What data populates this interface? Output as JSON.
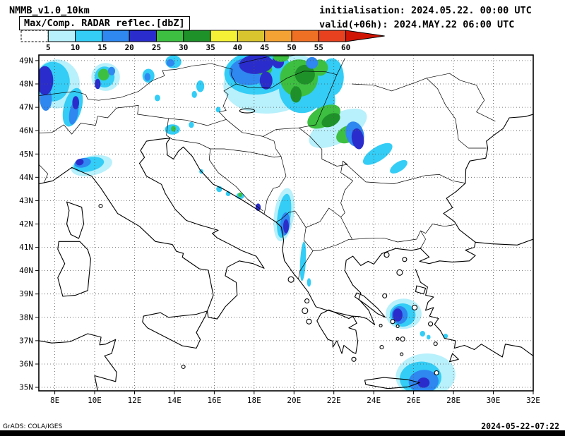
{
  "header": {
    "model": "NMMB_v1.0_10km",
    "init": "initialisation: 2024.05.22. 00:00 UTC",
    "valid": "valid(+06h): 2024.MAY.22 06:00 UTC"
  },
  "legend": {
    "title": "Max/Comp. RADAR reflec.[dbZ]",
    "tick_values": [
      "5",
      "10",
      "15",
      "20",
      "25",
      "30",
      "35",
      "40",
      "45",
      "50",
      "55",
      "60"
    ],
    "segment_colors": [
      "#ffffff",
      "#b8f0fb",
      "#33cdf6",
      "#2f87f0",
      "#2a2dcb",
      "#3dbf41",
      "#1e9129",
      "#f4f136",
      "#d9c52e",
      "#f3a233",
      "#ee7024",
      "#e7411f"
    ],
    "arrow_color": "#d01505",
    "below_min_style": "dashed-white"
  },
  "map": {
    "lat_labels": [
      "49N",
      "48N",
      "47N",
      "46N",
      "45N",
      "44N",
      "43N",
      "42N",
      "41N",
      "40N",
      "39N",
      "38N",
      "37N",
      "36N",
      "35N"
    ],
    "lon_labels": [
      "8E",
      "10E",
      "12E",
      "14E",
      "16E",
      "18E",
      "20E",
      "22E",
      "24E",
      "26E",
      "28E",
      "30E",
      "32E"
    ]
  },
  "footer": {
    "credit": "GrADS: COLA/IGES",
    "timestamp": "2024-05-22-07:22"
  }
}
